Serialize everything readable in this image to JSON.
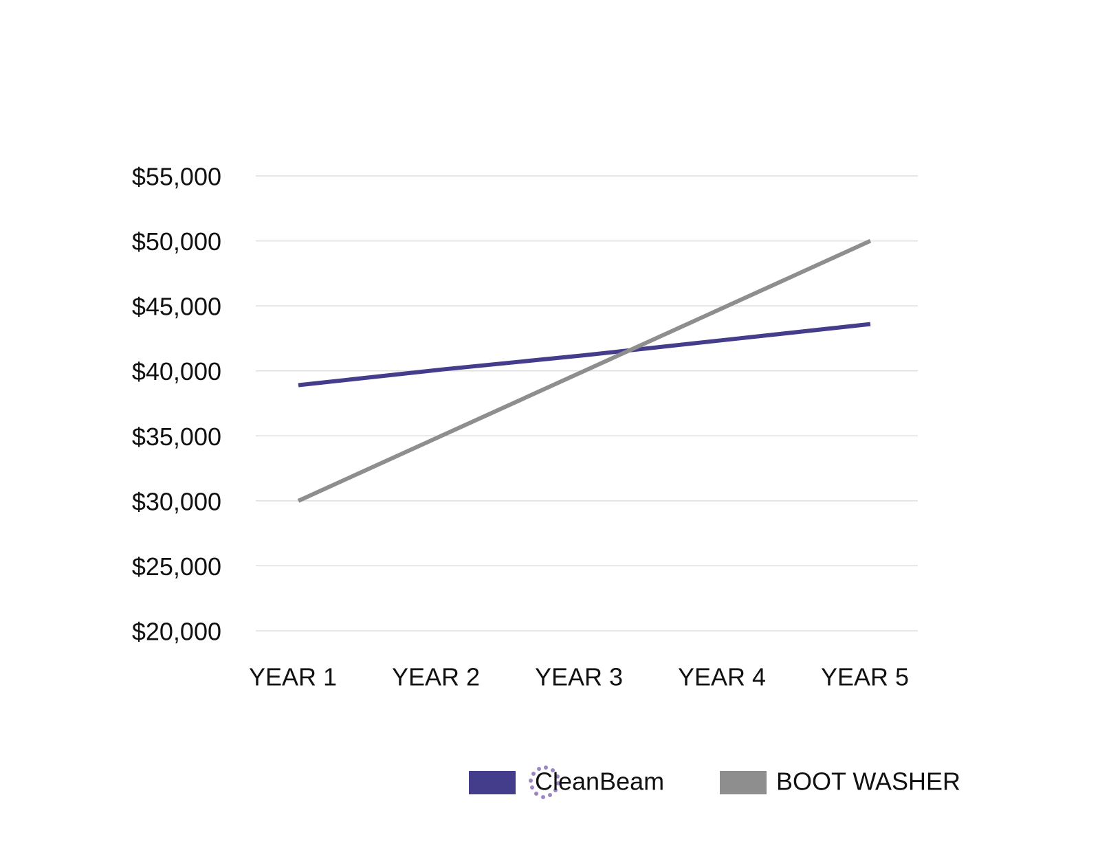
{
  "chart_data": {
    "type": "line",
    "categories": [
      "YEAR 1",
      "YEAR 2",
      "YEAR 3",
      "YEAR 4",
      "YEAR 5"
    ],
    "series": [
      {
        "name": "CleanBeam",
        "color": "#433d8b",
        "values": [
          38900,
          40100,
          41200,
          42400,
          43600
        ]
      },
      {
        "name": "BOOT WASHER",
        "color": "#8e8e8e",
        "values": [
          30000,
          35000,
          40000,
          45000,
          50000
        ]
      }
    ],
    "ylim": [
      20000,
      55000
    ],
    "yticks": [
      {
        "value": 20000,
        "label": "$20,000"
      },
      {
        "value": 25000,
        "label": "$25,000"
      },
      {
        "value": 30000,
        "label": "$30,000"
      },
      {
        "value": 35000,
        "label": "$35,000"
      },
      {
        "value": 40000,
        "label": "$40,000"
      },
      {
        "value": 45000,
        "label": "$45,000"
      },
      {
        "value": 50000,
        "label": "$50,000"
      },
      {
        "value": 55000,
        "label": "$55,000"
      }
    ],
    "grid": true
  }
}
